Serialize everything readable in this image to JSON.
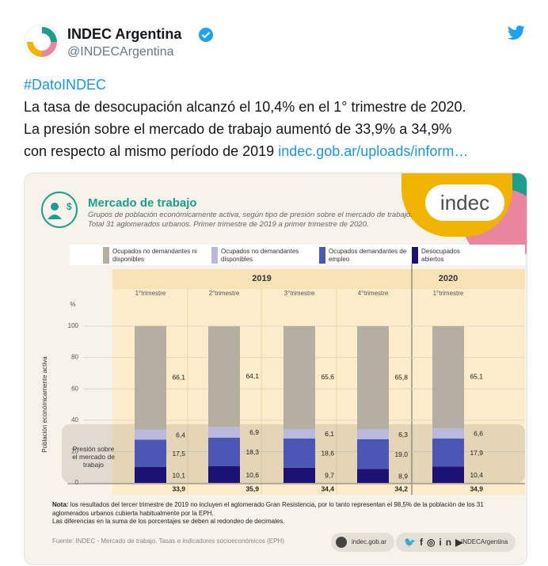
{
  "tweet": {
    "name": "INDEC Argentina",
    "handle": "@INDECArgentina",
    "hashtag": "#DatoINDEC",
    "lines": [
      "La tasa de desocupación alcanzó el 10,4% en el 1° trimestre de 2020.",
      "La presión sobre el mercado de trabajo aumentó de 33,9% a 34,9%",
      "con respecto al mismo período de 2019"
    ],
    "link": "indec.gob.ar/uploads/inform…"
  },
  "chart_data": {
    "type": "stacked-bar",
    "logo": "indec",
    "title": "Mercado de trabajo",
    "subtitle": "Grupos de población económicamente activa, según tipo de presión sobre el mercado de trabajo. Total 31 aglomerados urbanos. Primer trimestre de 2019 a primer trimestre de 2020.",
    "ylabel": "Población económicamente activa",
    "yunit": "%",
    "groups": [
      {
        "label": "2019",
        "categories": [
          "1°trimestre",
          "2°trimestre",
          "3°trimestre",
          "4°trimestre"
        ]
      },
      {
        "label": "2020",
        "categories": [
          "1°trimestre"
        ]
      }
    ],
    "ylim": [
      0,
      100
    ],
    "yticks": [
      0,
      20,
      40,
      60,
      80,
      100
    ],
    "grid": true,
    "series": [
      {
        "name": "Ocupados no demandantes ni disponibles",
        "color": "#b5aea2",
        "values": [
          66.1,
          64.1,
          65.6,
          65.8,
          65.1
        ],
        "value_labels": [
          "66,1",
          "64,1",
          "65,6",
          "65,8",
          "65,1"
        ]
      },
      {
        "name": "Ocupados no demandantes disponibles",
        "color": "#b9b9de",
        "values": [
          6.4,
          6.9,
          6.1,
          6.3,
          6.6
        ],
        "value_labels": [
          "6,4",
          "6,9",
          "6,1",
          "6,3",
          "6,6"
        ]
      },
      {
        "name": "Ocupados demandantes de empleo",
        "color": "#4b57b4",
        "values": [
          17.5,
          18.3,
          18.6,
          19.0,
          17.9
        ],
        "value_labels": [
          "17,5",
          "18,3",
          "18,6",
          "19,0",
          "17,9"
        ]
      },
      {
        "name": "Desocupados abiertos",
        "color": "#1b1273",
        "values": [
          10.1,
          10.6,
          9.7,
          8.9,
          10.4
        ],
        "value_labels": [
          "10,1",
          "10,6",
          "9,7",
          "8,9",
          "10,4"
        ]
      }
    ],
    "pressure": {
      "label": "Presión sobre el mercado de trabajo",
      "values": [
        33.9,
        35.9,
        34.4,
        34.2,
        34.9
      ],
      "value_labels": [
        "33,9",
        "35,9",
        "34,4",
        "34,2",
        "34,9"
      ]
    },
    "note_label": "Nota:",
    "note": "los resultados del tercer trimestre de 2019 no incluyen el aglomerado Gran Resistencia, por lo tanto representan el 98,5% de la población de los 31 aglomerados urbanos cubierta habitualmente por la EPH.",
    "note2": "Las diferencias en la suma de los porcentajes se deben al redondeo de decimales.",
    "source": "Fuente: INDEC - Mercado de trabajo. Tasas e indicadores socioeconómicos (EPH)",
    "site": "indec.gob.ar",
    "social": "INDECArgentina"
  }
}
